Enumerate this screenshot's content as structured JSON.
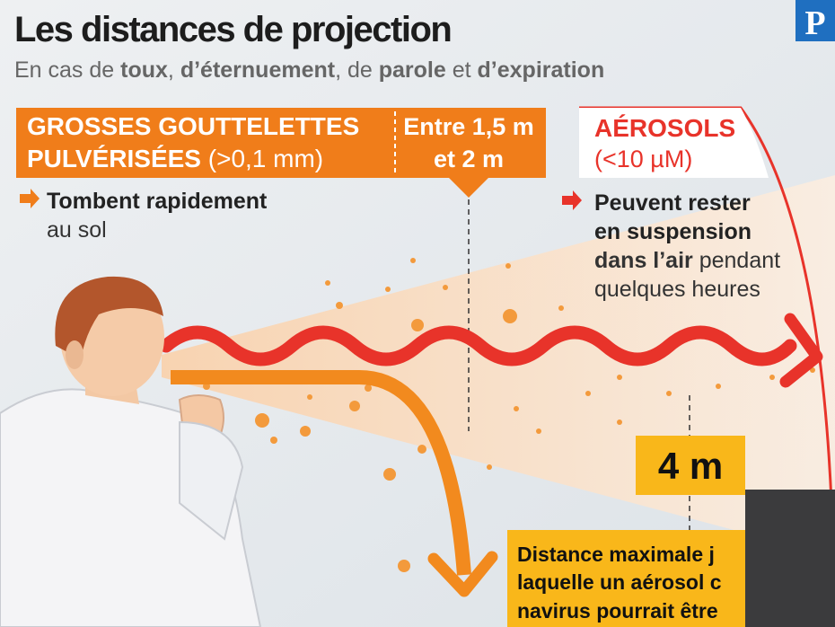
{
  "header": {
    "title": "Les distances de projection",
    "subtitle": [
      "En cas de ",
      "toux",
      ", ",
      "d’éternuement",
      ", de ",
      "parole",
      " et ",
      "d’expiration"
    ],
    "logo": "P"
  },
  "droplets": {
    "heading": [
      "GROSSES GOUTTELETTES",
      "PULVÉRISÉES",
      " (>0,1 mm)"
    ],
    "note": [
      "Tombent rapidement",
      "au sol"
    ]
  },
  "range": [
    "Entre 1,5 m",
    "et 2 m"
  ],
  "aerosols": {
    "heading": [
      "AÉROSOLS",
      "(<10 µM)"
    ],
    "note": [
      "Peuvent rester",
      "en suspension",
      "dans l’air",
      " pendant",
      "quelques heures"
    ]
  },
  "max_distance": {
    "label": "4 m",
    "caption": [
      "Distance maximale j",
      "laquelle un aérosol c",
      "navirus pourrait être"
    ]
  }
}
